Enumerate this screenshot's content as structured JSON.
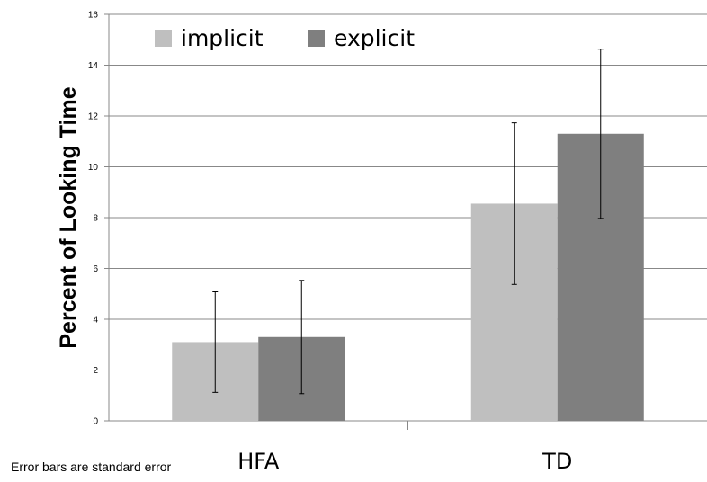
{
  "chart_data": {
    "type": "bar",
    "categories": [
      "HFA",
      "TD"
    ],
    "series": [
      {
        "name": "implicit",
        "color": "#bfbfbf",
        "values": [
          3.1,
          8.55
        ],
        "error": [
          1.98,
          3.18
        ]
      },
      {
        "name": "explicit",
        "color": "#7f7f7f",
        "values": [
          3.3,
          11.3
        ],
        "error": [
          2.23,
          3.33
        ]
      }
    ],
    "ylabel": "Percent of Looking Time",
    "ylim": [
      0,
      16
    ],
    "yticks": [
      "0",
      "2",
      "4",
      "6",
      "8",
      "10",
      "12",
      "14",
      "16"
    ],
    "grid": true,
    "legend": "top-left",
    "footnote": "Error bars are standard error"
  }
}
